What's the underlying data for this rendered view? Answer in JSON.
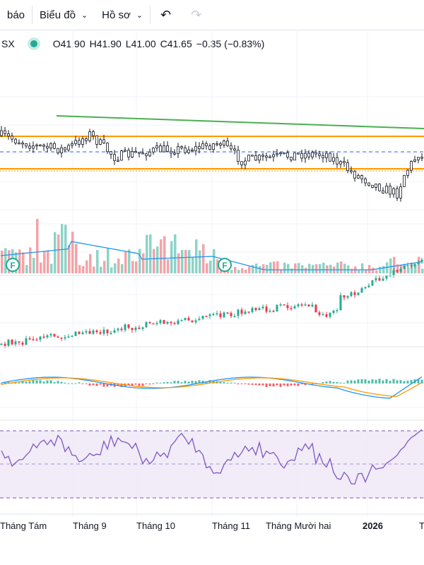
{
  "toolbar": {
    "item0": "báo",
    "item1": "Biểu đồ",
    "item2": "Hồ sơ",
    "undo_icon": "undo-icon",
    "redo_icon": "redo-icon",
    "chevron_icon": "chevron-down-icon"
  },
  "legend": {
    "symbol": "SX",
    "open": "O41.90",
    "high": "H41.90",
    "low": "L41.00",
    "close": "C41.65",
    "change": "−0.35 (−0.83%)",
    "status_color": "#22ab94"
  },
  "x_axis": [
    "Tháng Tám",
    "Tháng 9",
    "Tháng 10",
    "Tháng 11",
    "Tháng Mười hai",
    "2026",
    "T"
  ],
  "marker_label": "F",
  "colors": {
    "up": "#22ab94",
    "down": "#f23645",
    "volume_up": "#8dd3c7",
    "volume_down": "#f4a3a8",
    "trend_green": "#4caf50",
    "level_orange": "#ff9800",
    "dashed_blue": "#2962ff",
    "ma_blue": "#2196f3",
    "signal_orange": "#ff9800",
    "rsi_purple": "#7e57c2"
  }
}
